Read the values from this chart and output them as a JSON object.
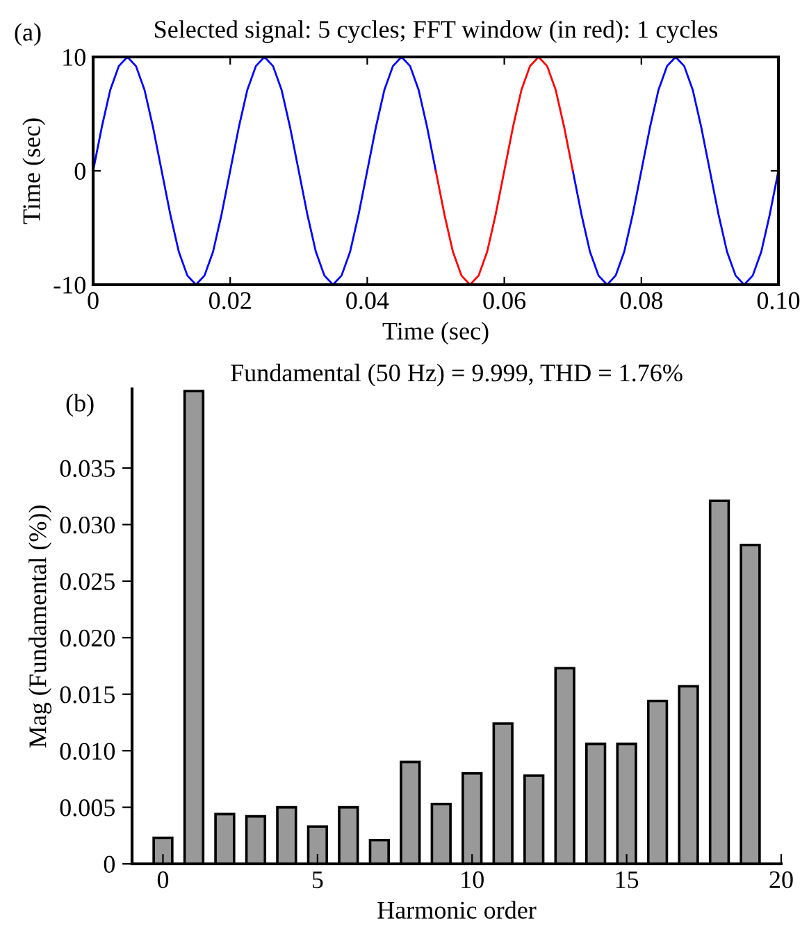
{
  "chart_data": [
    {
      "type": "line",
      "title": "Selected signal: 5 cycles; FFT window (in red): 1 cycles",
      "xlabel": "Time (sec)",
      "ylabel": "Time (sec)",
      "annotations": [
        "(a)"
      ],
      "series": [
        {
          "color": "#0000ff",
          "x": [
            0,
            0.00125,
            0.0025,
            0.00375,
            0.005,
            0.00625,
            0.0075,
            0.00875,
            0.01,
            0.01125,
            0.0125,
            0.01375,
            0.015,
            0.01625,
            0.0175,
            0.01875,
            0.02,
            0.02125,
            0.0225,
            0.02375,
            0.025,
            0.02625,
            0.0275,
            0.02875,
            0.03,
            0.03125,
            0.0325,
            0.03375,
            0.035,
            0.03625,
            0.0375,
            0.03875,
            0.04,
            0.04125,
            0.0425,
            0.04375,
            0.045,
            0.04625,
            0.0475,
            0.04875,
            0.05,
            0.05125,
            0.0525,
            0.05375,
            0.055,
            0.05625,
            0.0575,
            0.05875,
            0.06,
            0.06125,
            0.0625,
            0.06375,
            0.065,
            0.06625,
            0.0675,
            0.06875,
            0.07,
            0.07125,
            0.0725,
            0.07375,
            0.075,
            0.07625,
            0.0775,
            0.07875,
            0.08,
            0.08125,
            0.0825,
            0.08375,
            0.085,
            0.08625,
            0.0875,
            0.08875,
            0.09,
            0.09125,
            0.0925,
            0.09375,
            0.095,
            0.09625,
            0.0975,
            0.09875,
            0.1
          ],
          "values": [
            0,
            3.8,
            7.1,
            9.2,
            10,
            9.2,
            7.1,
            3.8,
            0,
            -3.8,
            -7.1,
            -9.2,
            -10,
            -9.2,
            -7.1,
            -3.8,
            0,
            3.8,
            7.1,
            9.2,
            10,
            9.2,
            7.1,
            3.8,
            0,
            -3.8,
            -7.1,
            -9.2,
            -10,
            -9.2,
            -7.1,
            -3.8,
            0,
            3.8,
            7.1,
            9.2,
            10,
            9.2,
            7.1,
            3.8,
            0,
            null,
            null,
            null,
            null,
            null,
            null,
            null,
            null,
            null,
            null,
            null,
            null,
            null,
            null,
            null,
            0,
            -3.8,
            -7.1,
            -9.2,
            -10,
            -9.2,
            -7.1,
            -3.8,
            0,
            3.8,
            7.1,
            9.2,
            10,
            9.2,
            7.1,
            3.8,
            0,
            -3.8,
            -7.1,
            -9.2,
            -10,
            -9.2,
            -7.1,
            -3.8,
            0
          ]
        },
        {
          "color": "#ff0000",
          "x": [
            0.05,
            0.05125,
            0.0525,
            0.05375,
            0.055,
            0.05625,
            0.0575,
            0.05875,
            0.06,
            0.06125,
            0.0625,
            0.06375,
            0.065,
            0.06625,
            0.0675,
            0.06875,
            0.07
          ],
          "values": [
            0,
            -3.8,
            -7.1,
            -9.2,
            -10,
            -9.2,
            -7.1,
            -3.8,
            0,
            3.8,
            7.1,
            9.2,
            10,
            9.2,
            7.1,
            3.8,
            0
          ]
        }
      ],
      "xlim": [
        0,
        0.1
      ],
      "ylim": [
        -10,
        10
      ],
      "xticks": [
        0,
        0.02,
        0.04,
        0.06,
        0.08,
        {
          "value": 0.1,
          "label": "0.10"
        }
      ],
      "yticks": [
        -10,
        0,
        10
      ]
    },
    {
      "type": "bar",
      "title": "Fundamental (50 Hz) = 9.999, THD = 1.76%",
      "xlabel": "Harmonic order",
      "ylabel": "Mag (Fundamental (%))",
      "annotations": [
        "(b)"
      ],
      "x": [
        0,
        1,
        2,
        3,
        4,
        5,
        6,
        7,
        8,
        9,
        10,
        11,
        12,
        13,
        14,
        15,
        16,
        17,
        18,
        19
      ],
      "values": [
        0.0023,
        0.0418,
        0.0044,
        0.0042,
        0.005,
        0.0033,
        0.005,
        0.0021,
        0.009,
        0.0053,
        0.008,
        0.0124,
        0.0078,
        0.0173,
        0.0106,
        0.0106,
        0.0144,
        0.0157,
        0.0321,
        0.0282
      ],
      "color": "#999999",
      "xlim": [
        -1,
        20
      ],
      "ylim": [
        0,
        0.042
      ],
      "xticks": [
        0,
        5,
        10,
        15,
        20
      ],
      "yticks": [
        0,
        0.005,
        {
          "value": 0.01,
          "label": "0.010"
        },
        0.015,
        {
          "value": 0.02,
          "label": "0.020"
        },
        0.025,
        {
          "value": 0.03,
          "label": "0.030"
        },
        0.035
      ]
    }
  ]
}
